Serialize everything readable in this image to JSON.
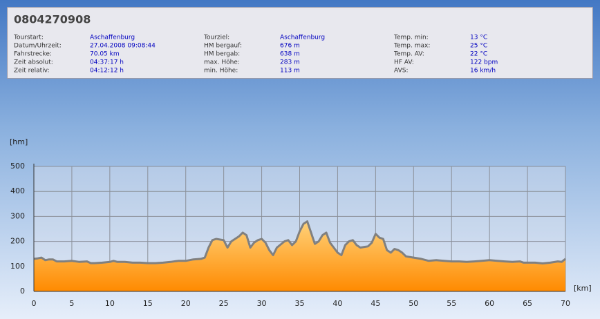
{
  "header": {
    "title": "0804270908",
    "fields": [
      {
        "label": "Tourstart:",
        "value": "Aschaffenburg"
      },
      {
        "label": "Datum/Uhrzeit:",
        "value": "27.04.2008 09:08:44"
      },
      {
        "label": "Fahrstrecke:",
        "value": "70.05 km"
      },
      {
        "label": "Zeit absolut:",
        "value": "04:37:17 h"
      },
      {
        "label": "Zeit relativ:",
        "value": "04:12:12 h"
      },
      {
        "label": "Tourziel:",
        "value": "Aschaffenburg"
      },
      {
        "label": "HM bergauf:",
        "value": "676 m"
      },
      {
        "label": "HM bergab:",
        "value": "638 m"
      },
      {
        "label": "max. Höhe:",
        "value": "283 m"
      },
      {
        "label": "min. Höhe:",
        "value": "113 m"
      },
      {
        "label": "Temp. min:",
        "value": "13 °C"
      },
      {
        "label": "Temp. max:",
        "value": "25 °C"
      },
      {
        "label": "Temp. AV:",
        "value": "22 °C"
      },
      {
        "label": "HF AV:",
        "value": "122 bpm"
      },
      {
        "label": "AVS:",
        "value": "16 km/h"
      }
    ]
  },
  "chart_data": {
    "type": "area",
    "x_label": "[km]",
    "y_label": "[hm]",
    "x": [
      0,
      0.5,
      1,
      1.5,
      2,
      2.5,
      3,
      4,
      5,
      6,
      7,
      7.5,
      8,
      9,
      10,
      10.5,
      11,
      12,
      13,
      14,
      15,
      16,
      17,
      18,
      19,
      20,
      21,
      22,
      22.5,
      23,
      23.5,
      24,
      25,
      25.5,
      26,
      27,
      27.5,
      28,
      28.5,
      29,
      29.5,
      30,
      30.5,
      31,
      31.5,
      32,
      33,
      33.5,
      34,
      34.5,
      35,
      35.5,
      36,
      36.5,
      37,
      37.5,
      38,
      38.5,
      39,
      40,
      40.5,
      41,
      41.5,
      42,
      42.5,
      43,
      43.5,
      44,
      44.5,
      45,
      45.5,
      46,
      46.5,
      47,
      47.5,
      48,
      48.5,
      49,
      50,
      51,
      52,
      53,
      54,
      55,
      56,
      57,
      58,
      59,
      60,
      61,
      62,
      63,
      64,
      64.5,
      65,
      66,
      67,
      68,
      69,
      69.5,
      70
    ],
    "values": [
      130,
      132,
      135,
      125,
      128,
      128,
      120,
      120,
      122,
      118,
      120,
      113,
      113,
      115,
      118,
      122,
      118,
      118,
      115,
      115,
      113,
      113,
      115,
      118,
      122,
      122,
      128,
      130,
      135,
      175,
      205,
      210,
      205,
      175,
      200,
      220,
      235,
      225,
      175,
      195,
      205,
      210,
      195,
      165,
      145,
      175,
      200,
      205,
      185,
      200,
      240,
      270,
      280,
      235,
      190,
      200,
      225,
      235,
      195,
      155,
      145,
      185,
      200,
      205,
      185,
      175,
      178,
      180,
      195,
      230,
      215,
      210,
      165,
      155,
      170,
      165,
      155,
      140,
      135,
      130,
      122,
      125,
      122,
      120,
      120,
      118,
      120,
      122,
      125,
      122,
      120,
      118,
      120,
      115,
      115,
      115,
      112,
      115,
      120,
      118,
      130
    ],
    "color": "#ff9a1a",
    "line_color": "#808080",
    "xlim": [
      0,
      70
    ],
    "xticks": [
      0,
      5,
      10,
      15,
      20,
      25,
      30,
      35,
      40,
      45,
      50,
      55,
      60,
      65,
      70
    ],
    "ylim": [
      0,
      500
    ],
    "yticks": [
      0,
      100,
      200,
      300,
      400,
      500
    ],
    "grid": true
  }
}
